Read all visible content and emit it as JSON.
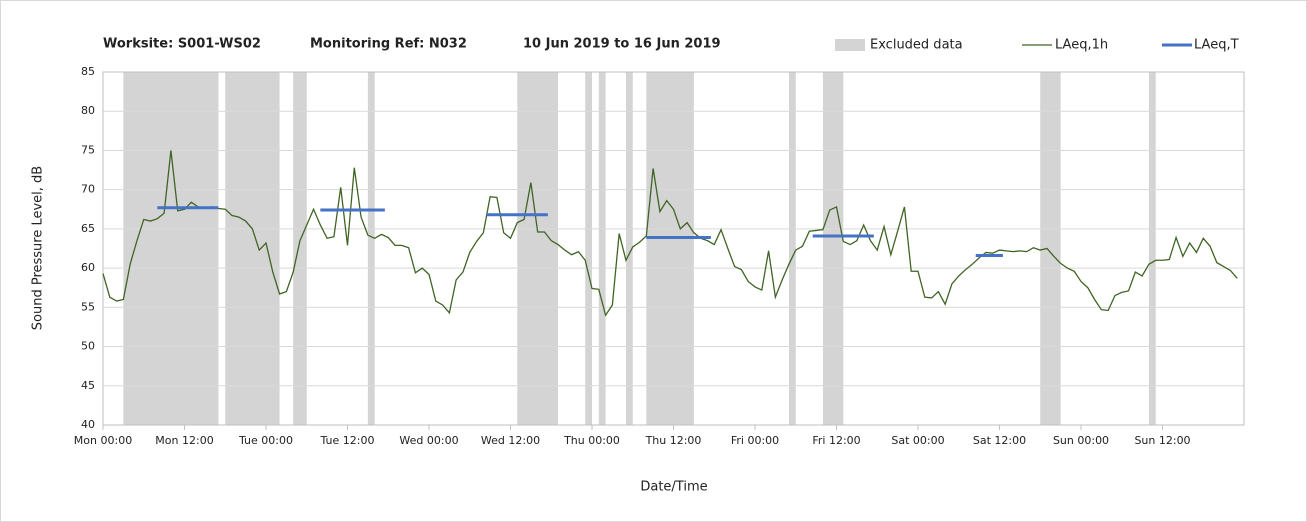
{
  "chart_data": {
    "type": "line",
    "title": [
      "Worksite: S001-WS02",
      "Monitoring Ref: N032",
      "10 Jun 2019 to 16 Jun 2019"
    ],
    "y_label": "Sound Pressure Level, dB",
    "x_label": "Date/Time",
    "xlim": [
      0,
      168
    ],
    "xticks": [
      {
        "value": 0,
        "label": "Mon 00:00"
      },
      {
        "value": 12,
        "label": "Mon 12:00"
      },
      {
        "value": 24,
        "label": "Tue 00:00"
      },
      {
        "value": 36,
        "label": "Tue 12:00"
      },
      {
        "value": 48,
        "label": "Wed 00:00"
      },
      {
        "value": 60,
        "label": "Wed 12:00"
      },
      {
        "value": 72,
        "label": "Thu 00:00"
      },
      {
        "value": 84,
        "label": "Thu 12:00"
      },
      {
        "value": 96,
        "label": "Fri 00:00"
      },
      {
        "value": 108,
        "label": "Fri 12:00"
      },
      {
        "value": 120,
        "label": "Sat 00:00"
      },
      {
        "value": 132,
        "label": "Sat 12:00"
      },
      {
        "value": 144,
        "label": "Sun 00:00"
      },
      {
        "value": 156,
        "label": "Sun 12:00"
      }
    ],
    "ylim": [
      40,
      85
    ],
    "yticks": [
      40,
      45,
      50,
      55,
      60,
      65,
      70,
      75,
      80,
      85
    ],
    "grid": true,
    "legend": "top-right",
    "excluded": {
      "name": "Excluded data",
      "color": "#d4d4d4",
      "ranges": [
        [
          3,
          17
        ],
        [
          18,
          26
        ],
        [
          28,
          30
        ],
        [
          39,
          40
        ],
        [
          61,
          67
        ],
        [
          71,
          72
        ],
        [
          73,
          74
        ],
        [
          77,
          78
        ],
        [
          80,
          87
        ],
        [
          101,
          102
        ],
        [
          106,
          109
        ],
        [
          138,
          141
        ],
        [
          154,
          155
        ]
      ]
    },
    "series": [
      {
        "name": "LAeq,1h",
        "color": "#3f6424",
        "x": [
          0,
          1,
          2,
          3,
          4,
          5,
          6,
          7,
          8,
          9,
          10,
          11,
          12,
          13,
          14,
          15,
          16,
          17,
          18,
          19,
          20,
          21,
          22,
          23,
          24,
          25,
          26,
          27,
          28,
          29,
          30,
          31,
          32,
          33,
          34,
          35,
          36,
          37,
          38,
          39,
          40,
          41,
          42,
          43,
          44,
          45,
          46,
          47,
          48,
          49,
          50,
          51,
          52,
          53,
          54,
          55,
          56,
          57,
          58,
          59,
          60,
          61,
          62,
          63,
          64,
          65,
          66,
          67,
          68,
          69,
          70,
          71,
          72,
          73,
          74,
          75,
          76,
          77,
          78,
          79,
          80,
          81,
          82,
          83,
          84,
          85,
          86,
          87,
          88,
          89,
          90,
          91,
          92,
          93,
          94,
          95,
          96,
          97,
          98,
          99,
          100,
          101,
          102,
          103,
          104,
          105,
          106,
          107,
          108,
          109,
          110,
          111,
          112,
          113,
          114,
          115,
          116,
          117,
          118,
          119,
          120,
          121,
          122,
          123,
          124,
          125,
          126,
          127,
          128,
          129,
          130,
          131,
          132,
          133,
          134,
          135,
          136,
          137,
          138,
          139,
          140,
          141,
          142,
          143,
          144,
          145,
          146,
          147,
          148,
          149,
          150,
          151,
          152,
          153,
          154,
          155,
          156,
          157,
          158,
          159,
          160,
          161,
          162,
          163,
          164,
          165,
          166,
          167
        ],
        "values": [
          59.3,
          56.3,
          55.8,
          56,
          60.5,
          63.5,
          66.2,
          66,
          66.3,
          67,
          75,
          67.3,
          67.5,
          68.4,
          67.8,
          67.7,
          67.8,
          67.6,
          67.5,
          66.7,
          66.5,
          66,
          65,
          62.3,
          63.2,
          59.5,
          56.7,
          57,
          59.5,
          63.5,
          65.5,
          67.5,
          65.5,
          63.8,
          64,
          70.3,
          62.9,
          72.8,
          66.5,
          64.2,
          63.8,
          64.3,
          63.9,
          62.9,
          62.9,
          62.6,
          59.4,
          60,
          59.2,
          55.8,
          55.3,
          54.3,
          58.5,
          59.5,
          62,
          63.4,
          64.5,
          69.1,
          69,
          64.5,
          63.8,
          65.8,
          66.2,
          70.9,
          64.6,
          64.6,
          63.5,
          63,
          62.3,
          61.7,
          62.1,
          61,
          57.4,
          57.3,
          54,
          55.3,
          64.4,
          61,
          62.7,
          63.3,
          64.1,
          72.7,
          67.2,
          68.6,
          67.5,
          65,
          65.8,
          64.5,
          63.8,
          63.5,
          63,
          64.9,
          62.5,
          60.2,
          59.8,
          58.3,
          57.6,
          57.2,
          62.2,
          56.3,
          58.5,
          60.5,
          62.3,
          62.8,
          64.7,
          64.8,
          64.9,
          67.4,
          67.8,
          63.4,
          63,
          63.5,
          65.5,
          63.5,
          62.3,
          65.3,
          61.7,
          64.7,
          67.8,
          59.6,
          59.6,
          56.3,
          56.2,
          57,
          55.4,
          58,
          59,
          59.8,
          60.5,
          61.3,
          62,
          61.9,
          62.3,
          62.2,
          62.1,
          62.2,
          62.1,
          62.6,
          62.3,
          62.5,
          61.5,
          60.6,
          60,
          59.6,
          58.3,
          57.5,
          56,
          54.7,
          54.6,
          56.5,
          56.9,
          57.1,
          59.5,
          59,
          60.5,
          61,
          61,
          61.1,
          63.9,
          61.5,
          63.2,
          62,
          63.8,
          62.8,
          60.7,
          60.2,
          59.7,
          58.7
        ]
      },
      {
        "name": "LAeq,T",
        "color": "#4472c4",
        "periods": [
          {
            "start": 8,
            "end": 17,
            "value": 67.7
          },
          {
            "start": 32,
            "end": 41.5,
            "value": 67.4
          },
          {
            "start": 56.5,
            "end": 65.5,
            "value": 66.8
          },
          {
            "start": 80,
            "end": 89.5,
            "value": 63.9
          },
          {
            "start": 104.5,
            "end": 113.5,
            "value": 64.1
          },
          {
            "start": 128.5,
            "end": 132.5,
            "value": 61.6
          }
        ]
      }
    ]
  }
}
